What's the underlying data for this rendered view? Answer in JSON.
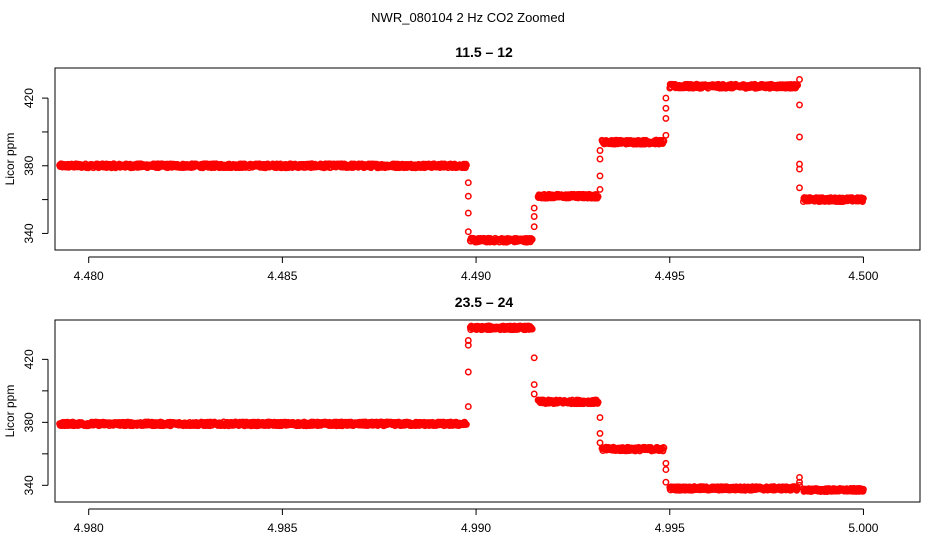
{
  "figure_title": "NWR_080104  2 Hz CO2 Zoomed",
  "colors": {
    "points": "#ff0000",
    "axes": "#000000",
    "background": "#ffffff"
  },
  "chart_data": [
    {
      "type": "scatter",
      "title": "11.5 – 12",
      "xlabel": "",
      "ylabel": "Licor ppm",
      "xlim": [
        4.47913,
        4.50146
      ],
      "ylim": [
        330.2,
        437.8
      ],
      "x_ticks": [
        4.48,
        4.485,
        4.49,
        4.495,
        4.5
      ],
      "x_tick_labels": [
        "4.480",
        "4.485",
        "4.490",
        "4.495",
        "4.500"
      ],
      "y_ticks": [
        340,
        380,
        420
      ],
      "y_tick_labels": [
        "340",
        "380",
        "420"
      ],
      "y_minor_ticks": [
        360,
        400
      ],
      "segments": [
        {
          "x_start": 4.47925,
          "x_end": 4.48975,
          "y": 380,
          "noise": 1.2
        },
        {
          "x_start": 4.48985,
          "x_end": 4.49145,
          "y": 336,
          "noise": 1.2
        },
        {
          "x_start": 4.4916,
          "x_end": 4.49315,
          "y": 362,
          "noise": 1.2
        },
        {
          "x_start": 4.49325,
          "x_end": 4.49485,
          "y": 394,
          "noise": 1.2
        },
        {
          "x_start": 4.495,
          "x_end": 4.4983,
          "y": 427,
          "noise": 1.2
        },
        {
          "x_start": 4.49845,
          "x_end": 4.5,
          "y": 360,
          "noise": 1.2
        }
      ],
      "transitions": [
        {
          "x": 4.4898,
          "y": [
            370,
            362,
            352,
            341
          ]
        },
        {
          "x": 4.4915,
          "y": [
            344,
            350,
            355
          ]
        },
        {
          "x": 4.4932,
          "y": [
            366,
            374,
            384,
            389
          ]
        },
        {
          "x": 4.4949,
          "y": [
            398,
            408,
            420,
            414
          ]
        },
        {
          "x": 4.49835,
          "y": [
            431,
            416,
            397,
            381,
            378,
            367
          ]
        }
      ]
    },
    {
      "type": "scatter",
      "title": "23.5 – 24",
      "xlabel": "",
      "ylabel": "Licor ppm",
      "xlim": [
        4.97913,
        5.00146
      ],
      "ylim": [
        329.4,
        445.0
      ],
      "x_ticks": [
        4.98,
        4.985,
        4.99,
        4.995,
        5.0
      ],
      "x_tick_labels": [
        "4.980",
        "4.985",
        "4.990",
        "4.995",
        "5.000"
      ],
      "y_ticks": [
        340,
        380,
        420
      ],
      "y_tick_labels": [
        "340",
        "380",
        "420"
      ],
      "y_minor_ticks": [
        360,
        400
      ],
      "segments": [
        {
          "x_start": 4.97925,
          "x_end": 4.98975,
          "y": 379,
          "noise": 1.2
        },
        {
          "x_start": 4.98985,
          "x_end": 4.99145,
          "y": 440,
          "noise": 1.2
        },
        {
          "x_start": 4.9916,
          "x_end": 4.99315,
          "y": 393,
          "noise": 1.2
        },
        {
          "x_start": 4.99325,
          "x_end": 4.99485,
          "y": 363,
          "noise": 1.2
        },
        {
          "x_start": 4.995,
          "x_end": 4.9983,
          "y": 338,
          "noise": 1.2
        },
        {
          "x_start": 4.99845,
          "x_end": 5.0,
          "y": 337,
          "noise": 1.0
        }
      ],
      "transitions": [
        {
          "x": 4.9898,
          "y": [
            390,
            412,
            429,
            432
          ]
        },
        {
          "x": 4.9915,
          "y": [
            421,
            404,
            398
          ]
        },
        {
          "x": 4.9932,
          "y": [
            383,
            373,
            367
          ]
        },
        {
          "x": 4.9949,
          "y": [
            354,
            350,
            342
          ]
        },
        {
          "x": 4.99835,
          "y": [
            345,
            342,
            340
          ]
        }
      ]
    }
  ]
}
